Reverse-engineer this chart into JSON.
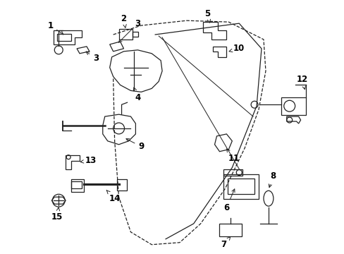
{
  "background_color": "#ffffff",
  "line_color": "#222222",
  "label_color": "#000000",
  "label_fontsize": 8.5,
  "figsize": [
    4.89,
    3.6
  ],
  "dpi": 100
}
